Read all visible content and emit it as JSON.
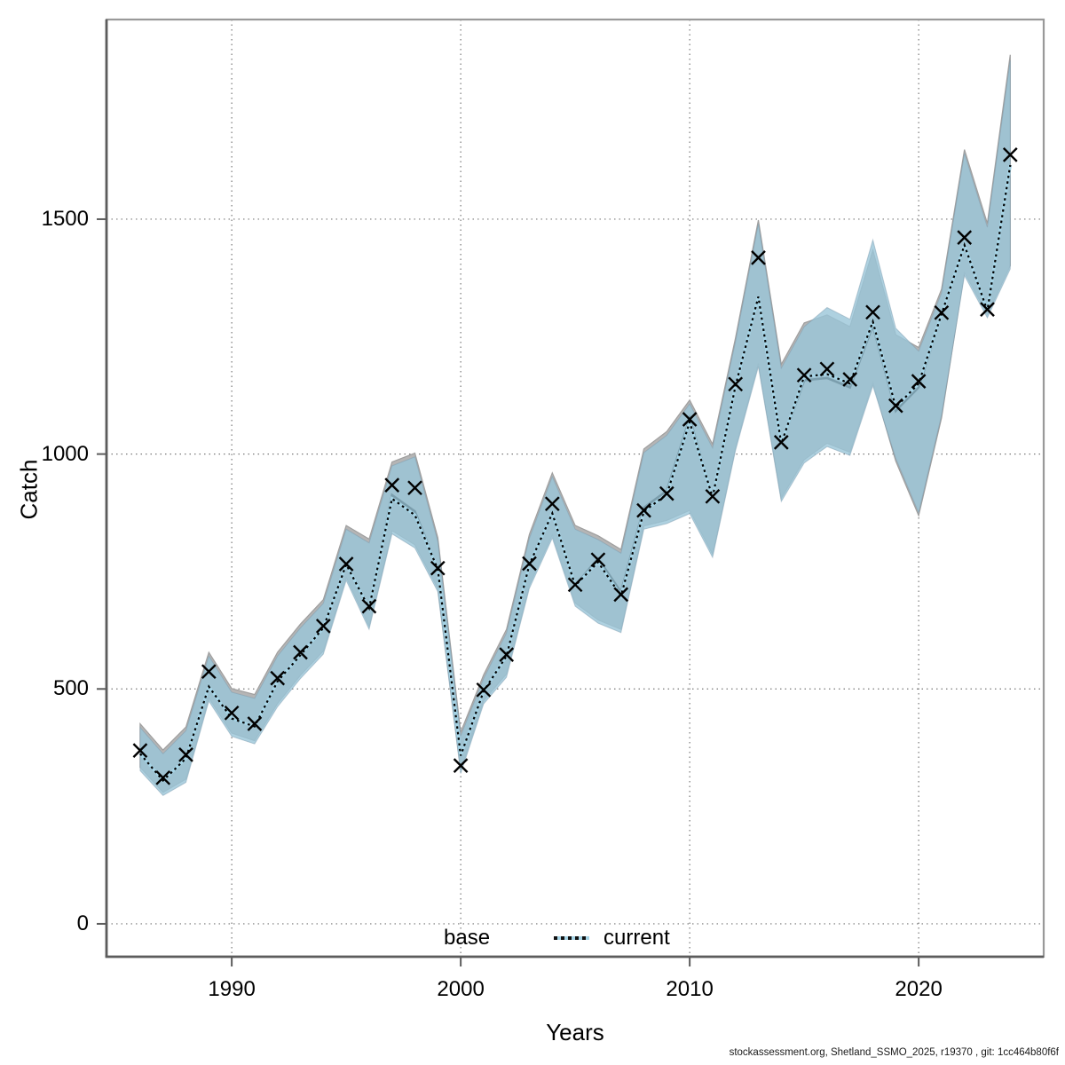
{
  "figure": {
    "xlabel": "Years",
    "ylabel": "Catch",
    "footer": "stockassessment.org, Shetland_SSMO_2025, r19370 , git: 1cc464b80f6f"
  },
  "legend": {
    "items": [
      {
        "label": "base",
        "line_style": "solid",
        "line_color": "#000000"
      },
      {
        "label": "current",
        "line_style": "dotted",
        "line_color": "#000000",
        "underlay_color": "#a6d4e6"
      }
    ]
  },
  "chart_data": {
    "type": "line",
    "title": "",
    "xlabel": "Years",
    "ylabel": "Catch",
    "xlim": [
      1984.53,
      2025.46
    ],
    "ylim": [
      -70,
      1925
    ],
    "x_ticks": [
      1990,
      2000,
      2010,
      2020
    ],
    "y_ticks": [
      0,
      500,
      1000,
      1500
    ],
    "grid": true,
    "legend_position": "bottom-center-inside",
    "years": [
      1986,
      1987,
      1988,
      1989,
      1990,
      1991,
      1992,
      1993,
      1994,
      1995,
      1996,
      1997,
      1998,
      1999,
      2000,
      2001,
      2002,
      2003,
      2004,
      2005,
      2006,
      2007,
      2008,
      2009,
      2010,
      2011,
      2012,
      2013,
      2014,
      2015,
      2016,
      2017,
      2018,
      2019,
      2020,
      2021,
      2022,
      2023,
      2024
    ],
    "observations": {
      "name": "observed catch",
      "marker": "x",
      "color": "#000000",
      "values": [
        369,
        311,
        360,
        537,
        449,
        426,
        523,
        578,
        634,
        766,
        676,
        934,
        928,
        757,
        337,
        498,
        573,
        767,
        894,
        722,
        775,
        701,
        880,
        916,
        1074,
        910,
        1149,
        1418,
        1025,
        1168,
        1181,
        1159,
        1302,
        1103,
        1155,
        1301,
        1461,
        1308,
        1637
      ]
    },
    "series": [
      {
        "name": "base",
        "line_style": "solid",
        "line_color": "#000000",
        "band_color": "#b5b5b5",
        "band_edge_color": "#9f9f9f",
        "values": [
          362,
          305,
          352,
          505,
          437,
          420,
          516,
          572,
          630,
          765,
          672,
          913,
          878,
          755,
          358,
          495,
          570,
          765,
          874,
          720,
          778,
          706,
          886,
          922,
          1076,
          908,
          1145,
          1335,
          1022,
          1157,
          1162,
          1142,
          1274,
          1092,
          1142,
          1298,
          1445,
          1305,
          1615
        ],
        "lo": [
          333,
          280,
          308,
          481,
          406,
          390,
          469,
          529,
          581,
          738,
          634,
          837,
          807,
          714,
          327,
          475,
          532,
          721,
          828,
          683,
          647,
          627,
          847,
          859,
          880,
          787,
          1014,
          1193,
          906,
          988,
          1023,
          1004,
          1152,
          985,
          869,
          1077,
          1387,
          1297,
          1401
        ],
        "hi": [
          426,
          370,
          419,
          578,
          501,
          488,
          578,
          638,
          690,
          848,
          819,
          983,
          1002,
          822,
          408,
          530,
          627,
          829,
          960,
          848,
          826,
          797,
          1011,
          1048,
          1115,
          1021,
          1247,
          1498,
          1191,
          1279,
          1296,
          1271,
          1434,
          1254,
          1227,
          1351,
          1648,
          1491,
          1850
        ]
      },
      {
        "name": "current",
        "line_style": "dotted",
        "line_color": "#000000",
        "line_underlay_color": "#a6d4e6",
        "band_color": "rgba(154,198,216,0.8)",
        "band_edge_color": "rgba(120,150,170,0.45)",
        "values": [
          362,
          305,
          352,
          505,
          437,
          420,
          516,
          572,
          630,
          765,
          672,
          905,
          870,
          755,
          358,
          495,
          570,
          765,
          874,
          720,
          770,
          698,
          878,
          914,
          1068,
          908,
          1145,
          1335,
          1022,
          1165,
          1170,
          1150,
          1282,
          1100,
          1150,
          1298,
          1445,
          1305,
          1615
        ],
        "lo": [
          326,
          273,
          301,
          474,
          399,
          383,
          462,
          522,
          574,
          731,
          627,
          830,
          800,
          707,
          320,
          468,
          525,
          714,
          821,
          676,
          640,
          620,
          840,
          852,
          873,
          780,
          1007,
          1186,
          899,
          981,
          1016,
          997,
          1145,
          991,
          875,
          1083,
          1380,
          1290,
          1394
        ],
        "hi": [
          418,
          362,
          411,
          570,
          493,
          480,
          570,
          630,
          682,
          840,
          811,
          975,
          994,
          814,
          400,
          522,
          619,
          821,
          952,
          840,
          818,
          789,
          1003,
          1040,
          1107,
          1013,
          1239,
          1490,
          1183,
          1271,
          1312,
          1287,
          1456,
          1268,
          1219,
          1343,
          1640,
          1483,
          1838
        ]
      }
    ],
    "style": {
      "grid_color": "#6a6a6a",
      "box_color": "#999999",
      "axis_color": "#5c5c5c",
      "marker_color": "#000000",
      "background": "#ffffff"
    }
  }
}
